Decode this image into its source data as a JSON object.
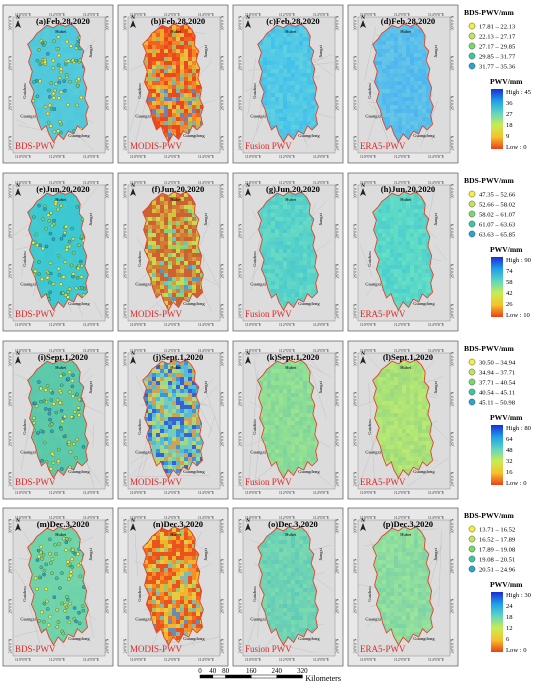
{
  "panels": [
    {
      "id": "a",
      "title": "(a)Feb.28,2020",
      "source": "BDS-PWV",
      "type": "station",
      "base": [
        80,
        200,
        220
      ],
      "warm": 0.0,
      "tint": 0
    },
    {
      "id": "b",
      "title": "(b)Feb.28,2020",
      "source": "MODIS-PWV",
      "type": "raster",
      "base": [
        240,
        100,
        40
      ],
      "warm": 1.0,
      "tint": 1
    },
    {
      "id": "c",
      "title": "(c)Feb.28,2020",
      "source": "Fusion PWV",
      "type": "raster",
      "base": [
        80,
        200,
        230
      ],
      "warm": 0.0,
      "tint": 2
    },
    {
      "id": "d",
      "title": "(d)Feb.28,2020",
      "source": "ERA5-PWV",
      "type": "raster",
      "base": [
        90,
        190,
        235
      ],
      "warm": 0.0,
      "tint": 3
    },
    {
      "id": "e",
      "title": "(e)Jun.20,2020",
      "source": "BDS-PWV",
      "type": "station",
      "base": [
        60,
        200,
        210
      ],
      "warm": 0.0,
      "tint": 0
    },
    {
      "id": "f",
      "title": "(f)Jun.20,2020",
      "source": "MODIS-PWV",
      "type": "raster",
      "base": [
        120,
        200,
        120
      ],
      "warm": 0.6,
      "tint": 4
    },
    {
      "id": "g",
      "title": "(g)Jun.20,2020",
      "source": "Fusion PWV",
      "type": "raster",
      "base": [
        90,
        210,
        200
      ],
      "warm": 0.0,
      "tint": 2
    },
    {
      "id": "h",
      "title": "(h)Jun.20,2020",
      "source": "ERA5-PWV",
      "type": "raster",
      "base": [
        90,
        215,
        200
      ],
      "warm": 0.0,
      "tint": 3
    },
    {
      "id": "i",
      "title": "(i)Sept.1,2020",
      "source": "BDS-PWV",
      "type": "station",
      "base": [
        90,
        200,
        170
      ],
      "warm": 0.1,
      "tint": 0
    },
    {
      "id": "j",
      "title": "(j)Sept.1,2020",
      "source": "MODIS-PWV",
      "type": "raster",
      "base": [
        90,
        170,
        200
      ],
      "warm": 0.5,
      "tint": 4
    },
    {
      "id": "k",
      "title": "(k)Sept.1,2020",
      "source": "Fusion PWV",
      "type": "raster",
      "base": [
        140,
        220,
        150
      ],
      "warm": 0.1,
      "tint": 2
    },
    {
      "id": "l",
      "title": "(l)Sept.1,2020",
      "source": "ERA5-PWV",
      "type": "raster",
      "base": [
        170,
        225,
        120
      ],
      "warm": 0.15,
      "tint": 3
    },
    {
      "id": "m",
      "title": "(m)Dec.3,2020",
      "source": "BDS-PWV",
      "type": "station",
      "base": [
        110,
        210,
        170
      ],
      "warm": 0.1,
      "tint": 0
    },
    {
      "id": "n",
      "title": "(n)Dec.3,2020",
      "source": "MODIS-PWV",
      "type": "raster",
      "base": [
        240,
        140,
        40
      ],
      "warm": 0.9,
      "tint": 1
    },
    {
      "id": "o",
      "title": "(o)Dec.3,2020",
      "source": "Fusion PWV",
      "type": "raster",
      "base": [
        110,
        210,
        180
      ],
      "warm": 0.0,
      "tint": 2
    },
    {
      "id": "p",
      "title": "(p)Dec.3,2020",
      "source": "ERA5-PWV",
      "type": "raster",
      "base": [
        140,
        220,
        160
      ],
      "warm": 0.1,
      "tint": 3
    }
  ],
  "place_labels": {
    "north": "Hubei",
    "west": "Guizhou",
    "east": "Jiangxi",
    "southwest": "Guangxi",
    "south": "Guangdong"
  },
  "compass": "N",
  "x_ticks": [
    "110°0'0\"E",
    "112°0'0\"E",
    "114°0'0\"E"
  ],
  "y_ticks": [
    "30°0'0\"N",
    "28°0'0\"N",
    "26°0'0\"N",
    "24°0'0\"N"
  ],
  "legends": [
    {
      "title": "BDS-PWV/mm",
      "classes": [
        "17.81 – 22.13",
        "22.13 – 27.17",
        "27.17 – 29.85",
        "29.85 – 31.77",
        "31.77 – 35.36"
      ],
      "ramp_title": "PWV/mm",
      "ramp_labels": [
        "High : 45",
        "36",
        "27",
        "18",
        "9",
        "Low : 0"
      ]
    },
    {
      "title": "BDS-PWV/mm",
      "classes": [
        "47.35 – 52.66",
        "52.66 – 58.02",
        "58.02 – 61.07",
        "61.07 – 63.63",
        "63.63 – 65.85"
      ],
      "ramp_title": "PWV/mm",
      "ramp_labels": [
        "High : 90",
        "74",
        "58",
        "42",
        "26",
        "Low : 10"
      ]
    },
    {
      "title": "BDS-PWV/mm",
      "classes": [
        "30.50 – 34.94",
        "34.94 – 37.71",
        "37.71 – 40.54",
        "40.54 – 45.11",
        "45.11 – 50.98"
      ],
      "ramp_title": "PWV/mm",
      "ramp_labels": [
        "High : 80",
        "64",
        "48",
        "32",
        "16",
        "Low : 0"
      ]
    },
    {
      "title": "BDS-PWV/mm",
      "classes": [
        "13.71 – 16.52",
        "16.52 – 17.89",
        "17.89 – 19.08",
        "19.08 – 20.51",
        "20.51 – 24.96"
      ],
      "ramp_title": "PWV/mm",
      "ramp_labels": [
        "High : 30",
        "24",
        "18",
        "12",
        "6",
        "Low : 0"
      ]
    }
  ],
  "class_colors": [
    "#f6ee3c",
    "#bfe65a",
    "#7bd86a",
    "#3fc6a0",
    "#2aa6c8"
  ],
  "ramp_colors": [
    "#1a2bd8",
    "#1fa0e8",
    "#5fd6c0",
    "#c8ec52",
    "#f6c22a",
    "#e8401a"
  ],
  "scale_bar": {
    "ticks": [
      "0",
      "40",
      "80",
      "160",
      "240",
      "320"
    ],
    "unit": "Kilometers"
  }
}
